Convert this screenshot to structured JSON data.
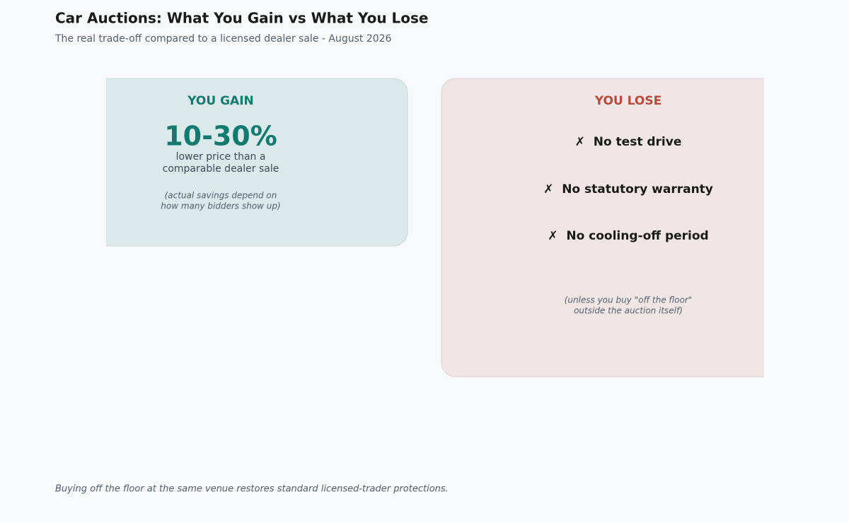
{
  "header": {
    "title": "Car Auctions: What You Gain vs What You Lose",
    "subtitle": "The real trade-off compared to a licensed dealer sale - August 2026"
  },
  "gain": {
    "heading": "YOU GAIN",
    "figure": "10-30%",
    "description": [
      "lower price than a",
      "comparable dealer sale"
    ],
    "note": [
      "(actual savings depend on",
      "how many bidders show up)"
    ]
  },
  "lose": {
    "heading": "YOU LOSE",
    "items": [
      "✗  No test drive",
      "✗  No statutory warranty",
      "✗  No cooling-off period"
    ],
    "note": [
      "(unless you buy \"off the floor\"",
      "outside the auction itself)"
    ]
  },
  "footer": "Buying off the floor at the same venue restores standard licensed-trader protections."
}
